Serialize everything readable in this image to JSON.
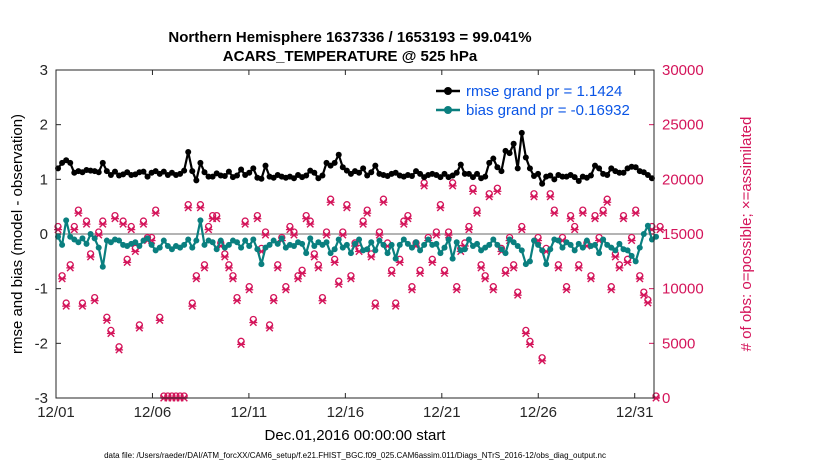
{
  "chart_data": {
    "type": "line",
    "title_line1": "Northern Hemisphere 1637336 / 1653193 = 99.041%",
    "title_line2": "ACARS_TEMPERATURE @ 525 hPa",
    "xlabel": "Dec.01,2016 00:00:00 start",
    "ylabel_left": "rmse and bias (model - observation)",
    "ylabel_right": "# of obs: o=possible; ×=assimilated",
    "footnote": "data file: /Users/raeder/DAI/ATM_forcXX/CAM6_setup/f.e21.FHIST_BGC.f09_025.CAM6assim.011/Diags_NTrS_2016-12/obs_diag_output.nc",
    "x_ticks": [
      "12/01",
      "12/06",
      "12/11",
      "12/16",
      "12/21",
      "12/26",
      "12/31"
    ],
    "x_tick_days": [
      0,
      5,
      10,
      15,
      20,
      25,
      30
    ],
    "xlim_days": [
      0,
      31.0
    ],
    "y_left_ticks": [
      "3",
      "2",
      "1",
      "0",
      "-1",
      "-2",
      "-3"
    ],
    "y_left_tick_values": [
      3,
      2,
      1,
      0,
      -1,
      -2,
      -3
    ],
    "ylim_left": [
      -3,
      3
    ],
    "y_right_ticks": [
      "30000",
      "25000",
      "20000",
      "15000",
      "10000",
      "5000",
      "0"
    ],
    "y_right_tick_values": [
      30000,
      25000,
      20000,
      15000,
      10000,
      5000,
      0
    ],
    "ylim_right": [
      0,
      30000
    ],
    "gap_after_index": 18,
    "rmse_series": {
      "name": "rmse grand pr = 1.1424",
      "color": "#000000",
      "values": [
        1.2,
        1.3,
        1.35,
        1.3,
        1.12,
        1.15,
        1.13,
        1.17,
        1.16,
        1.15,
        1.13,
        1.3,
        1.15,
        1.08,
        1.14,
        1.07,
        1.09,
        1.13,
        1.08,
        1.09,
        1.13,
        1.14,
        1.05,
        1.12,
        1.15,
        1.1,
        1.14,
        1.08,
        1.12,
        1.08,
        1.1,
        1.16,
        1.5,
        1.15,
        0.98,
        1.3,
        1.13,
        1.05,
        1.05,
        1.11,
        1.07,
        1.06,
        1.14,
        1.04,
        1.07,
        1.18,
        1.08,
        1.12,
        1.2,
        1.03,
        1.01,
        1.25,
        1.05,
        1.03,
        1.08,
        1.05,
        1.03,
        1.05,
        1.02,
        1.08,
        1.04,
        1.07,
        1.16,
        1.12,
        1.02,
        1.07,
        1.3,
        1.25,
        1.3,
        1.45,
        1.22,
        1.16,
        1.1,
        1.15,
        1.12,
        1.2,
        1.07,
        1.13,
        1.25,
        1.1,
        1.08,
        1.06,
        1.1,
        1.12,
        1.07,
        1.05,
        1.08,
        1.06,
        1.15,
        1.1,
        1.04,
        1.08,
        1.1,
        1.08,
        1.04,
        1.1,
        1.04,
        1.07,
        1.12,
        1.27,
        1.1,
        1.1,
        1.04,
        1.1,
        1.02,
        1.05,
        1.3,
        1.38,
        1.22,
        1.15,
        1.52,
        1.48,
        1.65,
        1.2,
        1.85,
        1.4,
        1.2,
        1.06,
        1.1,
        0.92,
        1.05,
        1.07,
        1.0,
        1.08,
        1.05,
        1.05,
        1.08,
        1.04,
        0.97,
        1.05,
        1.03,
        1.07,
        1.25,
        1.2,
        1.1,
        1.08,
        1.2,
        1.15,
        1.12,
        1.12,
        1.2,
        1.23,
        1.22,
        1.15,
        1.13,
        1.08,
        1.02
      ]
    },
    "bias_series": {
      "name": "bias grand pr = -0.16932",
      "color": "#0a7f7f",
      "values": [
        -0.05,
        -0.2,
        0.25,
        -0.05,
        -0.1,
        -0.15,
        -0.08,
        -0.18,
        0.0,
        -0.08,
        -0.25,
        -0.6,
        -0.12,
        -0.15,
        -0.1,
        -0.12,
        -0.2,
        -0.22,
        -0.18,
        -0.15,
        -0.22,
        -0.12,
        -0.08,
        -0.2,
        -0.3,
        -0.25,
        -0.12,
        -0.22,
        -0.28,
        -0.22,
        -0.25,
        -0.2,
        -0.1,
        -0.25,
        -0.12,
        0.25,
        -0.2,
        -0.12,
        -0.15,
        -0.28,
        -0.12,
        -0.25,
        -0.2,
        -0.12,
        -0.15,
        -0.25,
        -0.12,
        -0.22,
        -0.1,
        -0.28,
        -0.55,
        -0.25,
        -0.2,
        -0.12,
        -0.18,
        -0.08,
        -0.25,
        -0.2,
        -0.22,
        -0.15,
        -0.18,
        -0.35,
        -0.08,
        -0.22,
        -0.15,
        -0.2,
        -0.15,
        -0.35,
        -0.28,
        -0.1,
        -0.25,
        -0.2,
        -0.35,
        -0.18,
        -0.1,
        -0.3,
        -0.28,
        -0.15,
        -0.3,
        -0.12,
        -0.2,
        -0.35,
        -0.2,
        -0.45,
        -0.2,
        -0.1,
        -0.18,
        -0.25,
        -0.15,
        -0.3,
        -0.2,
        -0.1,
        -0.2,
        -0.18,
        -0.35,
        -0.25,
        -0.1,
        -0.45,
        -0.15,
        -0.3,
        -0.28,
        -0.1,
        -0.22,
        -0.18,
        -0.3,
        -0.25,
        -0.2,
        -0.1,
        -0.2,
        -0.28,
        -0.35,
        -0.1,
        -0.15,
        -0.22,
        -0.3,
        -0.55,
        -0.5,
        -0.12,
        -0.2,
        -0.3,
        -0.55,
        -0.28,
        -0.1,
        -0.12,
        -0.25,
        -0.15,
        -0.2,
        -0.3,
        -0.18,
        -0.25,
        -0.12,
        -0.22,
        -0.2,
        -0.35,
        -0.1,
        -0.2,
        -0.25,
        -0.3,
        -0.18,
        -0.28,
        -0.3,
        -0.4,
        -0.5,
        -0.25,
        0.0,
        0.15,
        -0.1,
        -0.05
      ]
    },
    "obs_possible": {
      "name": "possible",
      "marker": "o",
      "color": "#d4145a",
      "values": [
        15500,
        11000,
        8500,
        12000,
        15500,
        17000,
        8500,
        16000,
        13000,
        9000,
        15000,
        16000,
        7200,
        6000,
        16500,
        4500,
        16000,
        12500,
        15500,
        13500,
        6500,
        16000,
        14500,
        14500,
        17000,
        7200,
        0,
        0,
        0,
        0,
        0,
        0,
        17500,
        8500,
        11000,
        17500,
        12000,
        15500,
        16500,
        16500,
        14000,
        13000,
        12000,
        11000,
        9000,
        5000,
        16000,
        10000,
        7000,
        16500,
        13500,
        15000,
        6500,
        9000,
        12000,
        14500,
        10000,
        15500,
        15000,
        11000,
        11500,
        16500,
        16000,
        13000,
        12000,
        9000,
        15000,
        18000,
        12500,
        10500,
        15000,
        17500,
        11000,
        14000,
        13500,
        16000,
        17000,
        13000,
        8500,
        15000,
        18000,
        14000,
        11500,
        8500,
        12500,
        16000,
        16500,
        10000,
        14000,
        11500,
        19500,
        14500,
        12500,
        15000,
        17500,
        11500,
        15000,
        19500,
        10000,
        13500,
        14000,
        15500,
        19000,
        17000,
        12000,
        11000,
        18500,
        10000,
        19000,
        13500,
        11500,
        14500,
        12000,
        9500,
        15500,
        6000,
        5000,
        18500,
        14500,
        3500,
        13500,
        18500,
        17000,
        12000,
        14500,
        10000,
        16500,
        15500,
        12000,
        17000,
        14000,
        11000,
        16500,
        14500,
        17000,
        18000,
        10000,
        13000,
        12000,
        16500,
        12500,
        14500,
        17000,
        11000,
        9500,
        8800,
        15500,
        0,
        15500
      ]
    },
    "obs_assimilated": {
      "name": "assimilated",
      "marker": "x",
      "color": "#d4145a",
      "values": [
        15400,
        10900,
        8400,
        11900,
        15400,
        16900,
        8400,
        15900,
        12900,
        8900,
        14900,
        15900,
        7100,
        5900,
        16400,
        4400,
        15900,
        12400,
        15400,
        13400,
        6400,
        15900,
        14400,
        14400,
        16900,
        7100,
        0,
        0,
        0,
        0,
        0,
        0,
        17400,
        8400,
        10900,
        17400,
        11900,
        15400,
        16400,
        16400,
        13900,
        12900,
        11900,
        10900,
        8900,
        4900,
        15900,
        9900,
        6900,
        16400,
        13400,
        14900,
        6400,
        8900,
        11900,
        14400,
        9900,
        15400,
        14900,
        10900,
        11400,
        16400,
        15900,
        12900,
        11900,
        8900,
        14900,
        17900,
        12400,
        10400,
        14900,
        17400,
        10900,
        13900,
        13400,
        15900,
        16900,
        12900,
        8400,
        14900,
        17900,
        13900,
        11400,
        8400,
        12400,
        15900,
        16400,
        9900,
        13900,
        11400,
        19400,
        14400,
        12400,
        14900,
        17400,
        11400,
        14900,
        19400,
        9900,
        13400,
        13900,
        15400,
        18900,
        16900,
        11900,
        10900,
        18400,
        9900,
        18900,
        13400,
        11400,
        14400,
        11900,
        9400,
        15400,
        5900,
        4900,
        18400,
        14400,
        3400,
        13400,
        18400,
        16900,
        11900,
        14400,
        9900,
        16400,
        15400,
        11900,
        16900,
        13900,
        10900,
        16400,
        14400,
        16900,
        17900,
        9900,
        12900,
        11900,
        16400,
        12400,
        14400,
        16900,
        10900,
        9400,
        8700,
        15400,
        0,
        15400
      ]
    }
  }
}
